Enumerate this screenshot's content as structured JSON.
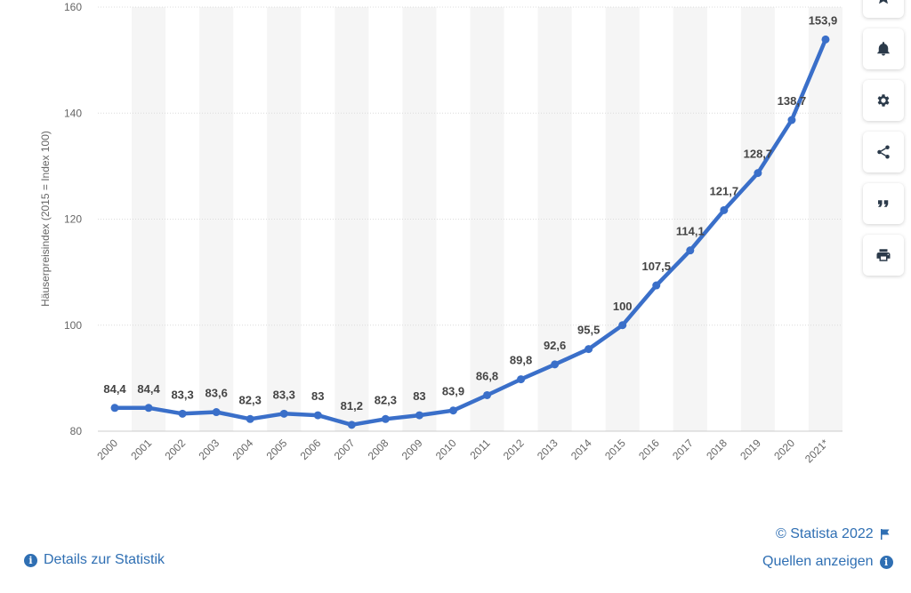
{
  "chart_data": {
    "type": "line",
    "title": "",
    "xlabel": "",
    "ylabel": "Häuserpreisindex (2015 = Index 100)",
    "ylim": [
      80,
      160
    ],
    "yticks": [
      80,
      100,
      120,
      140,
      160
    ],
    "grid": true,
    "categories": [
      "2000",
      "2001",
      "2002",
      "2003",
      "2004",
      "2005",
      "2006",
      "2007",
      "2008",
      "2009",
      "2010",
      "2011",
      "2012",
      "2013",
      "2014",
      "2015",
      "2016",
      "2017",
      "2018",
      "2019",
      "2020",
      "2021*"
    ],
    "values": [
      84.4,
      84.4,
      83.3,
      83.6,
      82.3,
      83.3,
      83,
      81.2,
      82.3,
      83,
      83.9,
      86.8,
      89.8,
      92.6,
      95.5,
      100,
      107.5,
      114.1,
      121.7,
      128.7,
      138.7,
      153.9
    ],
    "value_labels": [
      "84,4",
      "84,4",
      "83,3",
      "83,6",
      "82,3",
      "83,3",
      "83",
      "81,2",
      "82,3",
      "83",
      "83,9",
      "86,8",
      "89,8",
      "92,6",
      "95,5",
      "100",
      "107,5",
      "114,1",
      "121,7",
      "128,7",
      "138,7",
      "153,9"
    ],
    "series_color": "#3a6fc9"
  },
  "toolbar": {
    "items": [
      {
        "name": "star-icon"
      },
      {
        "name": "bell-icon"
      },
      {
        "name": "gear-icon"
      },
      {
        "name": "share-icon"
      },
      {
        "name": "quote-icon"
      },
      {
        "name": "print-icon"
      }
    ]
  },
  "footer": {
    "copyright": "© Statista 2022",
    "details_label": "Details zur Statistik",
    "sources_label": "Quellen anzeigen"
  }
}
